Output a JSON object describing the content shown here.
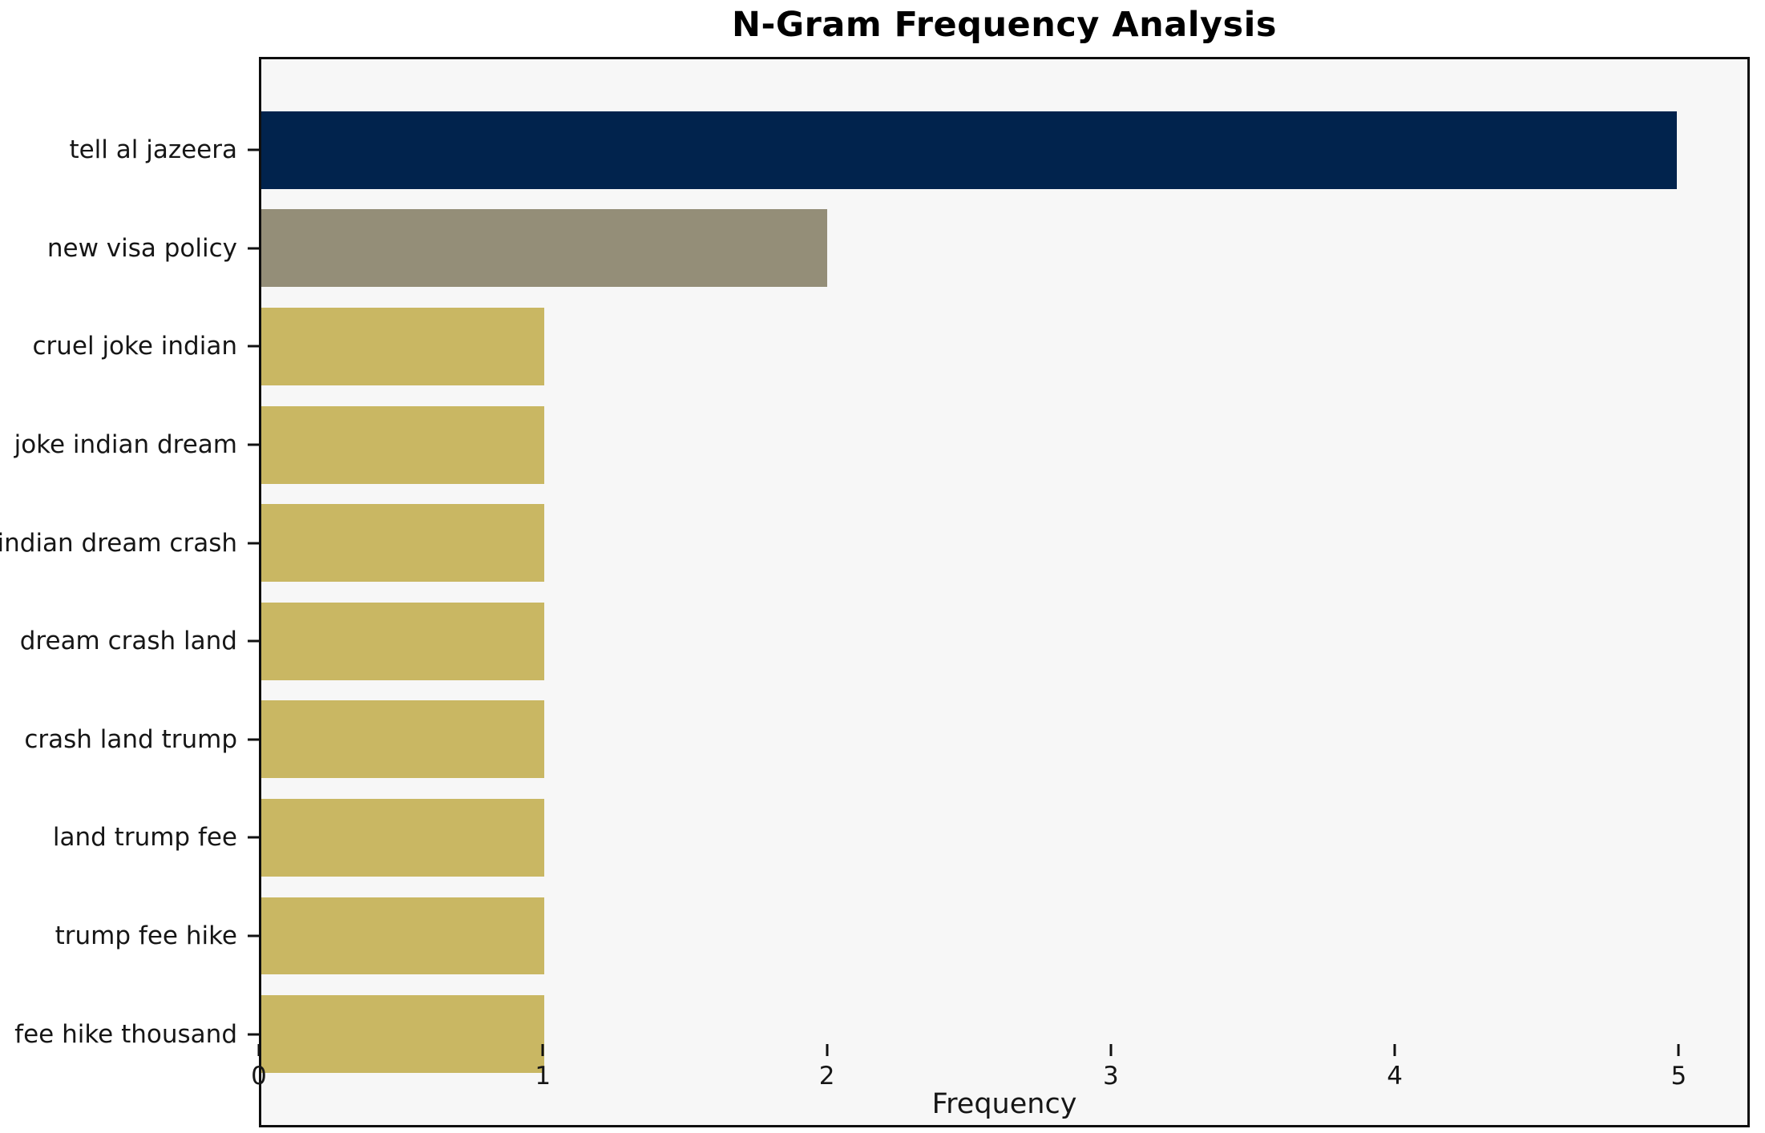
{
  "figure": {
    "title": "N-Gram Frequency Analysis",
    "xlabel": "Frequency"
  },
  "chart_data": {
    "type": "bar",
    "orientation": "horizontal",
    "title": "N-Gram Frequency Analysis",
    "xlabel": "Frequency",
    "ylabel": "",
    "categories": [
      "tell al jazeera",
      "new visa policy",
      "cruel joke indian",
      "joke indian dream",
      "indian dream crash",
      "dream crash land",
      "crash land trump",
      "land trump fee",
      "trump fee hike",
      "fee hike thousand"
    ],
    "values": [
      5,
      2,
      1,
      1,
      1,
      1,
      1,
      1,
      1,
      1
    ],
    "xlim": [
      0,
      5.25
    ],
    "x_ticks": [
      0,
      1,
      2,
      3,
      4,
      5
    ],
    "grid": false,
    "legend_position": "none",
    "bar_colors": [
      "#01234d",
      "#948e78",
      "#c9b763",
      "#c9b763",
      "#c9b763",
      "#c9b763",
      "#c9b763",
      "#c9b763",
      "#c9b763",
      "#c9b763"
    ],
    "plot_background": "#f7f7f7",
    "figure_background": "#ffffff",
    "spine_color": "#0e0e0e",
    "tick_color": "#111111",
    "text_color": "#161616"
  }
}
